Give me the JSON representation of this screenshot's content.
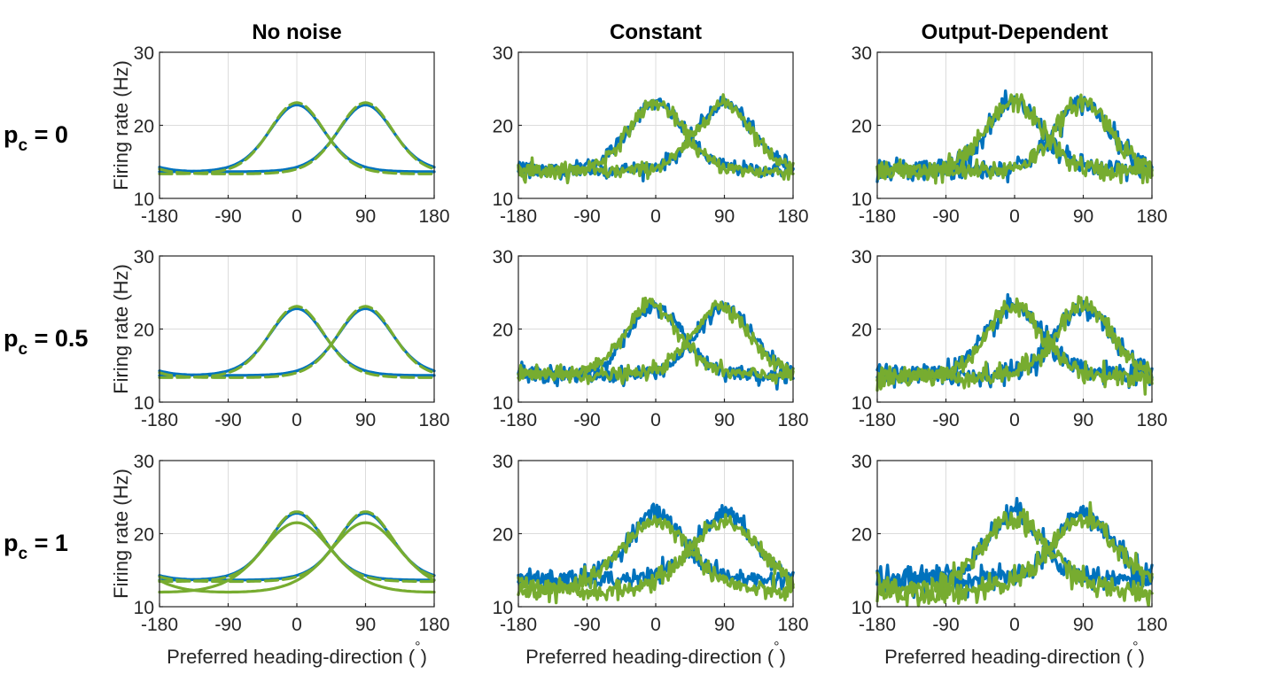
{
  "columns": [
    "No noise",
    "Constant",
    "Output-Dependent"
  ],
  "rows": [
    {
      "label_main": "p",
      "label_sub": "c",
      "label_rest": " = 0"
    },
    {
      "label_main": "p",
      "label_sub": "c",
      "label_rest": " = 0.5"
    },
    {
      "label_main": "p",
      "label_sub": "c",
      "label_rest": " = 1"
    }
  ],
  "ylabel": "Firing rate (Hz)",
  "xlabel": "Preferred heading-direction (",
  "xlabel_degree": "°",
  "xlabel_close": ")",
  "colors": {
    "blue": "#0072BD",
    "green": "#77AC30"
  },
  "chart_data": [
    {
      "type": "line",
      "panel": "r1c1",
      "xlim": [
        -180,
        180
      ],
      "ylim": [
        10,
        30
      ],
      "xticks": [
        "-180",
        "-90",
        "0",
        "90",
        "180"
      ],
      "yticks": [
        "10",
        "20",
        "30"
      ],
      "series": [
        {
          "color": "blue",
          "style": "solid",
          "noise": 0,
          "peak_x": 0,
          "peak": 22.8,
          "base": 13.6
        },
        {
          "color": "blue",
          "style": "solid",
          "noise": 0,
          "peak_x": 90,
          "peak": 22.8,
          "base": 13.6
        },
        {
          "color": "green",
          "style": "dashed",
          "noise": 0,
          "peak_x": 0,
          "peak": 23.1,
          "base": 13.3
        },
        {
          "color": "green",
          "style": "dashed",
          "noise": 0,
          "peak_x": 90,
          "peak": 23.1,
          "base": 13.3
        }
      ]
    },
    {
      "type": "line",
      "panel": "r1c2",
      "xlim": [
        -180,
        180
      ],
      "ylim": [
        10,
        30
      ],
      "xticks": [
        "-180",
        "-90",
        "0",
        "90",
        "180"
      ],
      "yticks": [
        "10",
        "20",
        "30"
      ],
      "series": [
        {
          "color": "blue",
          "style": "solid",
          "noise": 0.5,
          "peak_x": 0,
          "peak": 23,
          "base": 13.8
        },
        {
          "color": "blue",
          "style": "solid",
          "noise": 0.5,
          "peak_x": 90,
          "peak": 23,
          "base": 13.8
        },
        {
          "color": "green",
          "style": "solid",
          "noise": 0.5,
          "peak_x": 0,
          "peak": 23,
          "base": 13.6
        },
        {
          "color": "green",
          "style": "solid",
          "noise": 0.5,
          "peak_x": 90,
          "peak": 23,
          "base": 13.6
        }
      ]
    },
    {
      "type": "line",
      "panel": "r1c3",
      "xlim": [
        -180,
        180
      ],
      "ylim": [
        10,
        30
      ],
      "xticks": [
        "-180",
        "-90",
        "0",
        "90",
        "180"
      ],
      "yticks": [
        "10",
        "20",
        "30"
      ],
      "series": [
        {
          "color": "blue",
          "style": "solid",
          "noise": 0.7,
          "peak_x": 0,
          "peak": 23,
          "base": 13.8
        },
        {
          "color": "blue",
          "style": "solid",
          "noise": 0.7,
          "peak_x": 90,
          "peak": 23,
          "base": 13.8
        },
        {
          "color": "green",
          "style": "solid",
          "noise": 0.7,
          "peak_x": 0,
          "peak": 23.2,
          "base": 13.6
        },
        {
          "color": "green",
          "style": "solid",
          "noise": 0.7,
          "peak_x": 90,
          "peak": 23.2,
          "base": 13.6
        }
      ]
    },
    {
      "type": "line",
      "panel": "r2c1",
      "xlim": [
        -180,
        180
      ],
      "ylim": [
        10,
        30
      ],
      "xticks": [
        "-180",
        "-90",
        "0",
        "90",
        "180"
      ],
      "yticks": [
        "10",
        "20",
        "30"
      ],
      "series": [
        {
          "color": "blue",
          "style": "solid",
          "noise": 0,
          "peak_x": 0,
          "peak": 22.8,
          "base": 13.6
        },
        {
          "color": "blue",
          "style": "solid",
          "noise": 0,
          "peak_x": 90,
          "peak": 22.8,
          "base": 13.6
        },
        {
          "color": "green",
          "style": "dashed",
          "noise": 0,
          "peak_x": 0,
          "peak": 23.1,
          "base": 13.3
        },
        {
          "color": "green",
          "style": "dashed",
          "noise": 0,
          "peak_x": 90,
          "peak": 23.1,
          "base": 13.3
        }
      ]
    },
    {
      "type": "line",
      "panel": "r2c2",
      "xlim": [
        -180,
        180
      ],
      "ylim": [
        10,
        30
      ],
      "xticks": [
        "-180",
        "-90",
        "0",
        "90",
        "180"
      ],
      "yticks": [
        "10",
        "20",
        "30"
      ],
      "series": [
        {
          "color": "blue",
          "style": "solid",
          "noise": 0.5,
          "peak_x": 0,
          "peak": 23,
          "base": 13.6
        },
        {
          "color": "blue",
          "style": "solid",
          "noise": 0.5,
          "peak_x": 90,
          "peak": 23,
          "base": 13.6
        },
        {
          "color": "green",
          "style": "solid",
          "noise": 0.5,
          "peak_x": -5,
          "peak": 23.3,
          "base": 13.6
        },
        {
          "color": "green",
          "style": "solid",
          "noise": 0.5,
          "peak_x": 85,
          "peak": 23.3,
          "base": 13.6
        }
      ]
    },
    {
      "type": "line",
      "panel": "r2c3",
      "xlim": [
        -180,
        180
      ],
      "ylim": [
        10,
        30
      ],
      "xticks": [
        "-180",
        "-90",
        "0",
        "90",
        "180"
      ],
      "yticks": [
        "10",
        "20",
        "30"
      ],
      "series": [
        {
          "color": "blue",
          "style": "solid",
          "noise": 0.7,
          "peak_x": 0,
          "peak": 23,
          "base": 13.6
        },
        {
          "color": "blue",
          "style": "solid",
          "noise": 0.7,
          "peak_x": 90,
          "peak": 23,
          "base": 13.6
        },
        {
          "color": "green",
          "style": "solid",
          "noise": 0.7,
          "peak_x": 0,
          "peak": 23.3,
          "base": 13.4
        },
        {
          "color": "green",
          "style": "solid",
          "noise": 0.7,
          "peak_x": 90,
          "peak": 23.3,
          "base": 13.4
        }
      ]
    },
    {
      "type": "line",
      "panel": "r3c1",
      "xlim": [
        -180,
        180
      ],
      "ylim": [
        10,
        30
      ],
      "xticks": [
        "-180",
        "-90",
        "0",
        "90",
        "180"
      ],
      "yticks": [
        "10",
        "20",
        "30"
      ],
      "series": [
        {
          "color": "blue",
          "style": "solid",
          "noise": 0,
          "peak_x": 0,
          "peak": 22.8,
          "base": 13.6
        },
        {
          "color": "blue",
          "style": "solid",
          "noise": 0,
          "peak_x": 90,
          "peak": 22.8,
          "base": 13.6
        },
        {
          "color": "green",
          "style": "dashed",
          "noise": 0,
          "peak_x": 0,
          "peak": 23.0,
          "base": 13.4
        },
        {
          "color": "green",
          "style": "dashed",
          "noise": 0,
          "peak_x": 90,
          "peak": 23.0,
          "base": 13.4
        },
        {
          "color": "green",
          "style": "solid",
          "noise": 0,
          "peak_x": 0,
          "peak": 21.5,
          "base": 11.6,
          "wide": true
        },
        {
          "color": "green",
          "style": "solid",
          "noise": 0,
          "peak_x": 90,
          "peak": 21.5,
          "base": 11.6,
          "wide": true
        }
      ]
    },
    {
      "type": "line",
      "panel": "r3c2",
      "xlim": [
        -180,
        180
      ],
      "ylim": [
        10,
        30
      ],
      "xticks": [
        "-180",
        "-90",
        "0",
        "90",
        "180"
      ],
      "yticks": [
        "10",
        "20",
        "30"
      ],
      "series": [
        {
          "color": "blue",
          "style": "solid",
          "noise": 0.6,
          "peak_x": 0,
          "peak": 22.8,
          "base": 13.6
        },
        {
          "color": "blue",
          "style": "solid",
          "noise": 0.6,
          "peak_x": 90,
          "peak": 22.8,
          "base": 13.6
        },
        {
          "color": "green",
          "style": "solid",
          "noise": 0.6,
          "peak_x": 0,
          "peak": 21.7,
          "base": 11.6,
          "wide": true
        },
        {
          "color": "green",
          "style": "solid",
          "noise": 0.6,
          "peak_x": 90,
          "peak": 21.7,
          "base": 11.6,
          "wide": true
        }
      ]
    },
    {
      "type": "line",
      "panel": "r3c3",
      "xlim": [
        -180,
        180
      ],
      "ylim": [
        10,
        30
      ],
      "xticks": [
        "-180",
        "-90",
        "0",
        "90",
        "180"
      ],
      "yticks": [
        "10",
        "20",
        "30"
      ],
      "series": [
        {
          "color": "blue",
          "style": "solid",
          "noise": 0.8,
          "peak_x": 0,
          "peak": 22.8,
          "base": 13.6
        },
        {
          "color": "blue",
          "style": "solid",
          "noise": 0.8,
          "peak_x": 90,
          "peak": 22.8,
          "base": 13.6
        },
        {
          "color": "green",
          "style": "solid",
          "noise": 0.8,
          "peak_x": 0,
          "peak": 21.8,
          "base": 11.6,
          "wide": true
        },
        {
          "color": "green",
          "style": "solid",
          "noise": 0.8,
          "peak_x": 90,
          "peak": 21.8,
          "base": 11.6,
          "wide": true
        }
      ]
    }
  ]
}
